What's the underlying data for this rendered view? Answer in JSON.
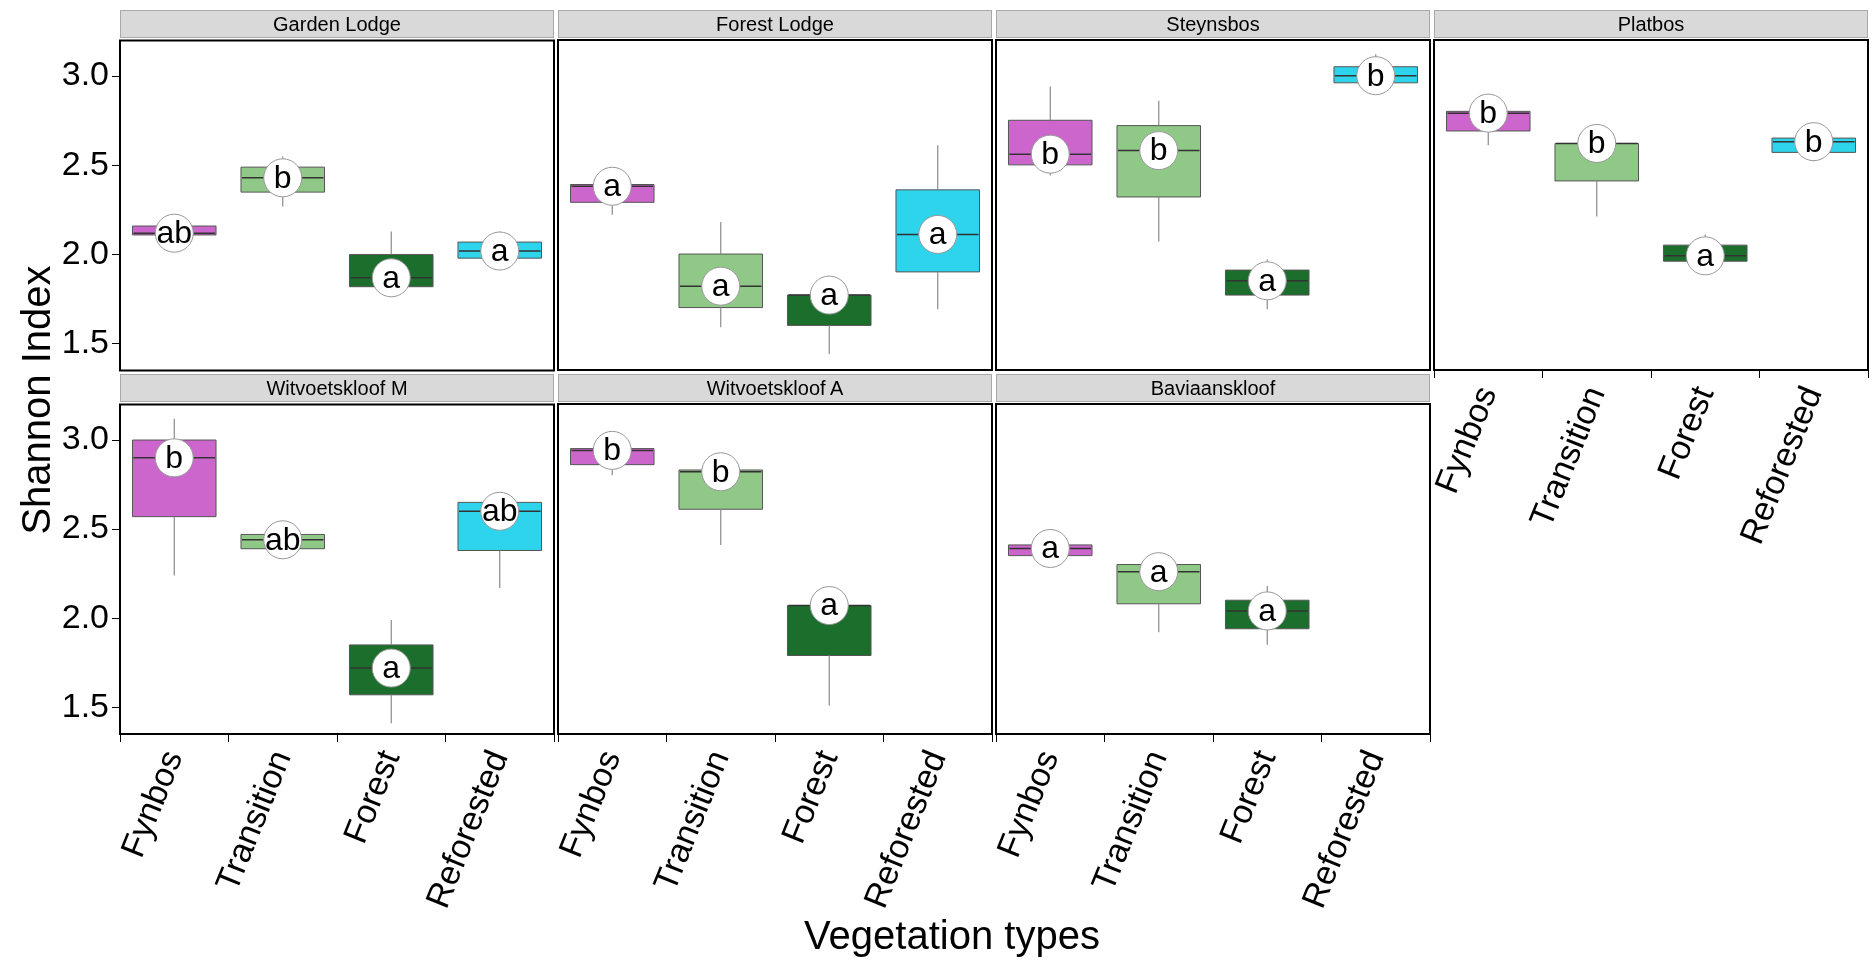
{
  "chart_data": [
    {
      "type": "box",
      "title": "Garden Lodge",
      "ylabel": "Shannon Index",
      "categories": [
        "Fynbos",
        "Transition",
        "Forest",
        "Reforested"
      ],
      "colors": [
        "#cc66cc",
        "#90c987",
        "#1c6e2c",
        "#2ed3ec"
      ],
      "boxes": [
        {
          "low": 2.1,
          "q1": 2.11,
          "median": 2.12,
          "q3": 2.16,
          "high": 2.17
        },
        {
          "low": 2.27,
          "q1": 2.35,
          "median": 2.43,
          "q3": 2.49,
          "high": 2.55
        },
        {
          "low": 1.78,
          "q1": 1.82,
          "median": 1.87,
          "q3": 2.0,
          "high": 2.13
        },
        {
          "low": 1.97,
          "q1": 1.98,
          "median": 2.02,
          "q3": 2.07,
          "high": 2.13
        }
      ],
      "ylim": [
        1.35,
        3.2
      ],
      "yticks": [
        {
          "value": 1.5,
          "label": "1.5"
        },
        {
          "value": 2,
          "label": "2.0"
        },
        {
          "value": 2.5,
          "label": "2.5"
        },
        {
          "value": 3,
          "label": "3.0"
        }
      ],
      "tick_labels": "y",
      "annotations": [
        {
          "text": "ab",
          "x": "Fynbos",
          "y": 2.12
        },
        {
          "text": "b",
          "x": "Transition",
          "y": 2.43
        },
        {
          "text": "a",
          "x": "Forest",
          "y": 1.87
        },
        {
          "text": "a",
          "x": "Reforested",
          "y": 2.02
        }
      ]
    },
    {
      "type": "box",
      "title": "Forest Lodge",
      "categories": [
        "Fynbos",
        "Transition",
        "Forest",
        "Reforested"
      ],
      "colors": [
        "#cc66cc",
        "#90c987",
        "#1c6e2c",
        "#2ed3ec"
      ],
      "boxes": [
        {
          "low": 2.22,
          "q1": 2.29,
          "median": 2.38,
          "q3": 2.39,
          "high": 2.39
        },
        {
          "low": 1.59,
          "q1": 1.7,
          "median": 1.82,
          "q3": 2.0,
          "high": 2.18
        },
        {
          "low": 1.44,
          "q1": 1.6,
          "median": 1.77,
          "q3": 1.77,
          "high": 1.78
        },
        {
          "low": 1.69,
          "q1": 1.9,
          "median": 2.11,
          "q3": 2.36,
          "high": 2.61
        }
      ],
      "ylim": [
        1.35,
        3.2
      ],
      "tick_labels": false,
      "annotations": [
        {
          "text": "a",
          "x": "Fynbos",
          "y": 2.38
        },
        {
          "text": "a",
          "x": "Transition",
          "y": 1.82
        },
        {
          "text": "a",
          "x": "Forest",
          "y": 1.77
        },
        {
          "text": "a",
          "x": "Reforested",
          "y": 2.11
        }
      ]
    },
    {
      "type": "box",
      "title": "Steynsbos",
      "categories": [
        "Fynbos",
        "Transition",
        "Forest",
        "Reforested"
      ],
      "colors": [
        "#cc66cc",
        "#90c987",
        "#1c6e2c",
        "#2ed3ec"
      ],
      "boxes": [
        {
          "low": 2.44,
          "q1": 2.5,
          "median": 2.56,
          "q3": 2.75,
          "high": 2.94
        },
        {
          "low": 2.07,
          "q1": 2.32,
          "median": 2.58,
          "q3": 2.72,
          "high": 2.86
        },
        {
          "low": 1.69,
          "q1": 1.77,
          "median": 1.85,
          "q3": 1.91,
          "high": 1.97
        },
        {
          "low": 2.95,
          "q1": 2.96,
          "median": 3.0,
          "q3": 3.05,
          "high": 3.12
        }
      ],
      "ylim": [
        1.35,
        3.2
      ],
      "tick_labels": false,
      "annotations": [
        {
          "text": "b",
          "x": "Fynbos",
          "y": 2.56
        },
        {
          "text": "b",
          "x": "Transition",
          "y": 2.58
        },
        {
          "text": "a",
          "x": "Forest",
          "y": 1.85
        },
        {
          "text": "b",
          "x": "Reforested",
          "y": 3.0
        }
      ]
    },
    {
      "type": "box",
      "title": "Platbos",
      "categories": [
        "Fynbos",
        "Transition",
        "Forest",
        "Reforested"
      ],
      "colors": [
        "#cc66cc",
        "#90c987",
        "#1c6e2c",
        "#2ed3ec"
      ],
      "boxes": [
        {
          "low": 2.61,
          "q1": 2.69,
          "median": 2.79,
          "q3": 2.8,
          "high": 2.8
        },
        {
          "low": 2.21,
          "q1": 2.41,
          "median": 2.62,
          "q3": 2.62,
          "high": 2.63
        },
        {
          "low": 1.95,
          "q1": 1.96,
          "median": 1.99,
          "q3": 2.05,
          "high": 2.11
        },
        {
          "low": 2.52,
          "q1": 2.57,
          "median": 2.63,
          "q3": 2.65,
          "high": 2.66
        }
      ],
      "ylim": [
        1.35,
        3.2
      ],
      "tick_labels": "x",
      "annotations": [
        {
          "text": "b",
          "x": "Fynbos",
          "y": 2.79
        },
        {
          "text": "b",
          "x": "Transition",
          "y": 2.62
        },
        {
          "text": "a",
          "x": "Forest",
          "y": 1.99
        },
        {
          "text": "b",
          "x": "Reforested",
          "y": 2.63
        }
      ]
    },
    {
      "type": "box",
      "title": "Witvoetskloof M",
      "categories": [
        "Fynbos",
        "Transition",
        "Forest",
        "Reforested"
      ],
      "colors": [
        "#cc66cc",
        "#90c987",
        "#1c6e2c",
        "#2ed3ec"
      ],
      "boxes": [
        {
          "low": 2.24,
          "q1": 2.57,
          "median": 2.9,
          "q3": 3.0,
          "high": 3.12
        },
        {
          "low": 2.39,
          "q1": 2.39,
          "median": 2.44,
          "q3": 2.47,
          "high": 2.47
        },
        {
          "low": 1.41,
          "q1": 1.57,
          "median": 1.72,
          "q3": 1.85,
          "high": 1.99
        },
        {
          "low": 2.17,
          "q1": 2.38,
          "median": 2.6,
          "q3": 2.65,
          "high": 2.7
        }
      ],
      "ylim": [
        1.35,
        3.2
      ],
      "yticks": [
        {
          "value": 1.5,
          "label": "1.5"
        },
        {
          "value": 2,
          "label": "2.0"
        },
        {
          "value": 2.5,
          "label": "2.5"
        },
        {
          "value": 3,
          "label": "3.0"
        }
      ],
      "annotations": [
        {
          "text": "b",
          "x": "Fynbos",
          "y": 2.9
        },
        {
          "text": "ab",
          "x": "Transition",
          "y": 2.44
        },
        {
          "text": "a",
          "x": "Forest",
          "y": 1.72
        },
        {
          "text": "ab",
          "x": "Reforested",
          "y": 2.6
        }
      ]
    },
    {
      "type": "box",
      "title": "Witvoetskloof A",
      "xlabel": "Vegetation types",
      "categories": [
        "Fynbos",
        "Transition",
        "Forest",
        "Reforested"
      ],
      "colors": [
        "#cc66cc",
        "#90c987",
        "#1c6e2c",
        "#2ed3ec"
      ],
      "boxes": [
        {
          "low": 2.8,
          "q1": 2.86,
          "median": 2.94,
          "q3": 2.95,
          "high": 2.95
        },
        {
          "low": 2.41,
          "q1": 2.61,
          "median": 2.82,
          "q3": 2.83,
          "high": 2.85
        },
        {
          "low": 1.51,
          "q1": 1.79,
          "median": 2.07,
          "q3": 2.07,
          "high": 2.08
        },
        null
      ],
      "ylim": [
        1.35,
        3.2
      ],
      "tick_labels": "x",
      "annotations": [
        {
          "text": "b",
          "x": "Fynbos",
          "y": 2.94
        },
        {
          "text": "b",
          "x": "Transition",
          "y": 2.82
        },
        {
          "text": "a",
          "x": "Forest",
          "y": 2.07
        }
      ]
    },
    {
      "type": "box",
      "title": "Baviaanskloof",
      "categories": [
        "Fynbos",
        "Transition",
        "Forest",
        "Reforested"
      ],
      "colors": [
        "#cc66cc",
        "#90c987",
        "#1c6e2c",
        "#2ed3ec"
      ],
      "boxes": [
        {
          "low": 2.35,
          "q1": 2.35,
          "median": 2.39,
          "q3": 2.41,
          "high": 2.41
        },
        {
          "low": 1.92,
          "q1": 2.08,
          "median": 2.26,
          "q3": 2.3,
          "high": 2.34
        },
        {
          "low": 1.85,
          "q1": 1.94,
          "median": 2.04,
          "q3": 2.1,
          "high": 2.18
        },
        null
      ],
      "ylim": [
        1.35,
        3.2
      ],
      "tick_labels": "x",
      "annotations": [
        {
          "text": "a",
          "x": "Fynbos",
          "y": 2.39
        },
        {
          "text": "a",
          "x": "Transition",
          "y": 2.26
        },
        {
          "text": "a",
          "x": "Forest",
          "y": 2.04
        }
      ]
    }
  ]
}
